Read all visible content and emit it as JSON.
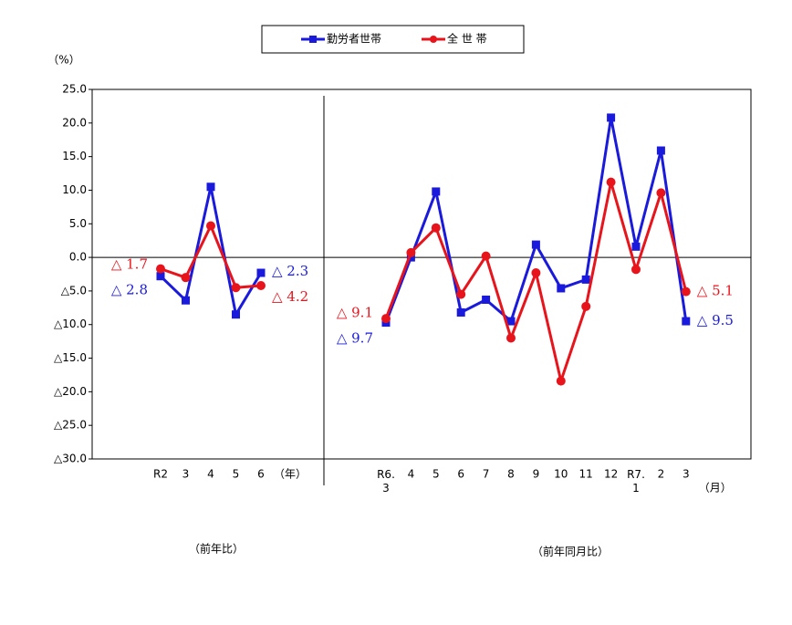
{
  "legend": true,
  "chart_data": [
    {
      "type": "line",
      "y_label": "（%）",
      "ylim": [
        -30,
        25
      ],
      "yticks": [
        {
          "value": 25,
          "label": "25.0"
        },
        {
          "value": 20,
          "label": "20.0"
        },
        {
          "value": 15,
          "label": "15.0"
        },
        {
          "value": 10,
          "label": "10.0"
        },
        {
          "value": 5,
          "label": "5.0"
        },
        {
          "value": 0,
          "label": "0.0"
        },
        {
          "value": -5,
          "label": "△5.0"
        },
        {
          "value": -10,
          "label": "△10.0"
        },
        {
          "value": -15,
          "label": "△15.0"
        },
        {
          "value": -20,
          "label": "△20.0"
        },
        {
          "value": -25,
          "label": "△25.0"
        },
        {
          "value": -30,
          "label": "△30.0"
        }
      ],
      "categories": [
        "R2",
        "3",
        "4",
        "5",
        "6"
      ],
      "x_unit": "（年）",
      "note": "（前年比）",
      "series": [
        {
          "name": "勤労者世帯",
          "color": "#1a1adc",
          "marker": "square",
          "values": [
            -2.8,
            -6.4,
            10.5,
            -8.5,
            -2.3
          ],
          "value_labels": [
            "△ 2.8",
            null,
            null,
            null,
            "△ 2.3"
          ]
        },
        {
          "name": "全 世 帯",
          "color": "#e8141c",
          "marker": "circle",
          "values": [
            -1.7,
            -3.0,
            4.7,
            -4.5,
            -4.2
          ],
          "value_labels": [
            "△ 1.7",
            null,
            null,
            null,
            "△ 4.2"
          ]
        }
      ]
    },
    {
      "type": "line",
      "ylim": [
        -30,
        25
      ],
      "categories": [
        "R6.\n3",
        "4",
        "5",
        "6",
        "7",
        "8",
        "9",
        "10",
        "11",
        "12",
        "R7.\n1",
        "2",
        "3"
      ],
      "x_unit": "（月）",
      "note": "（前年同月比）",
      "series": [
        {
          "color": "#1a1adc",
          "marker": "square",
          "values": [
            -9.7,
            0.0,
            9.8,
            -8.2,
            -6.3,
            -9.5,
            1.9,
            -4.6,
            -3.3,
            20.8,
            1.6,
            15.9,
            -9.5
          ],
          "value_labels": [
            "△ 9.7",
            null,
            null,
            null,
            null,
            null,
            null,
            null,
            null,
            null,
            null,
            null,
            "△ 9.5"
          ]
        },
        {
          "color": "#e8141c",
          "marker": "circle",
          "values": [
            -9.1,
            0.7,
            4.4,
            -5.5,
            0.2,
            -12.0,
            -2.3,
            -18.4,
            -7.3,
            11.2,
            -1.8,
            9.6,
            -5.1
          ],
          "value_labels": [
            "△ 9.1",
            null,
            null,
            null,
            null,
            null,
            null,
            null,
            null,
            null,
            null,
            null,
            "△ 5.1"
          ]
        }
      ]
    }
  ]
}
